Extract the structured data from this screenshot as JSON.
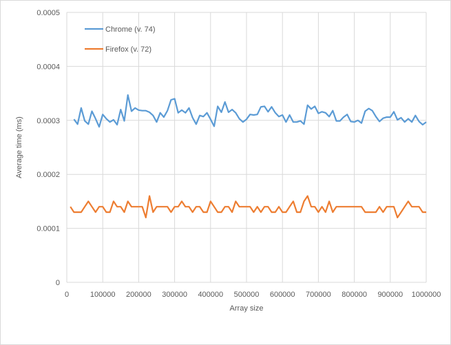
{
  "chart_data": {
    "type": "line",
    "title": "",
    "xlabel": "Array size",
    "ylabel": "Average time (ms)",
    "xlim": [
      0,
      1000000
    ],
    "ylim": [
      0,
      0.0005
    ],
    "x_ticks": [
      "0",
      "100000",
      "200000",
      "300000",
      "400000",
      "500000",
      "600000",
      "700000",
      "800000",
      "900000",
      "1000000"
    ],
    "y_ticks": [
      "0",
      "0.0001",
      "0.0002",
      "0.0003",
      "0.0004",
      "0.0005"
    ],
    "grid": true,
    "legend_position": "top-left",
    "series": [
      {
        "name": "Chrome (v. 74)",
        "color": "#5B9BD5",
        "x_start": 20000,
        "x_step": 10000,
        "values": [
          0.000302,
          0.000293,
          0.000323,
          0.000299,
          0.000293,
          0.000317,
          0.000303,
          0.000288,
          0.000311,
          0.000303,
          0.000297,
          0.000301,
          0.000292,
          0.00032,
          0.000299,
          0.000347,
          0.000317,
          0.000323,
          0.000319,
          0.000318,
          0.000318,
          0.000315,
          0.000309,
          0.000297,
          0.000314,
          0.000306,
          0.000318,
          0.000338,
          0.00034,
          0.000314,
          0.000319,
          0.000314,
          0.000323,
          0.000305,
          0.000293,
          0.000309,
          0.000307,
          0.000314,
          0.000302,
          0.000289,
          0.000326,
          0.000315,
          0.000334,
          0.000315,
          0.00032,
          0.000314,
          0.000303,
          0.000297,
          0.000302,
          0.000311,
          0.00031,
          0.000311,
          0.000325,
          0.000326,
          0.000316,
          0.000325,
          0.000314,
          0.000307,
          0.00031,
          0.000297,
          0.00031,
          0.000297,
          0.000297,
          0.000299,
          0.000293,
          0.000328,
          0.000321,
          0.000326,
          0.000313,
          0.000316,
          0.000314,
          0.000307,
          0.000318,
          0.000299,
          0.000299,
          0.000306,
          0.000311,
          0.000298,
          0.000297,
          0.0003,
          0.000295,
          0.000317,
          0.000322,
          0.000318,
          0.000307,
          0.000298,
          0.000304,
          0.000306,
          0.000306,
          0.000316,
          0.000301,
          0.000305,
          0.000297,
          0.000303,
          0.000297,
          0.000309,
          0.000298,
          0.000292,
          0.000297
        ]
      },
      {
        "name": "Firefox (v. 72)",
        "color": "#ED7D31",
        "x_start": 10000,
        "x_step": 10000,
        "values": [
          0.00014,
          0.00013,
          0.00013,
          0.00013,
          0.00014,
          0.00015,
          0.00014,
          0.00013,
          0.00014,
          0.00014,
          0.00013,
          0.00013,
          0.00015,
          0.00014,
          0.00014,
          0.00013,
          0.00015,
          0.00014,
          0.00014,
          0.00014,
          0.00014,
          0.00012,
          0.00016,
          0.00013,
          0.00014,
          0.00014,
          0.00014,
          0.00014,
          0.00013,
          0.00014,
          0.00014,
          0.00015,
          0.00014,
          0.00014,
          0.00013,
          0.00014,
          0.00014,
          0.00013,
          0.00013,
          0.00015,
          0.00014,
          0.00013,
          0.00013,
          0.00014,
          0.00014,
          0.00013,
          0.00015,
          0.00014,
          0.00014,
          0.00014,
          0.00014,
          0.00013,
          0.00014,
          0.00013,
          0.00014,
          0.00014,
          0.00013,
          0.00013,
          0.00014,
          0.00013,
          0.00013,
          0.00014,
          0.00015,
          0.00013,
          0.00013,
          0.00015,
          0.00016,
          0.00014,
          0.00014,
          0.00013,
          0.00014,
          0.00013,
          0.00015,
          0.00013,
          0.00014,
          0.00014,
          0.00014,
          0.00014,
          0.00014,
          0.00014,
          0.00014,
          0.00014,
          0.00013,
          0.00013,
          0.00013,
          0.00013,
          0.00014,
          0.00013,
          0.00014,
          0.00014,
          0.00014,
          0.00012,
          0.00013,
          0.00014,
          0.00015,
          0.00014,
          0.00014,
          0.00014,
          0.00013,
          0.00013
        ]
      }
    ]
  }
}
